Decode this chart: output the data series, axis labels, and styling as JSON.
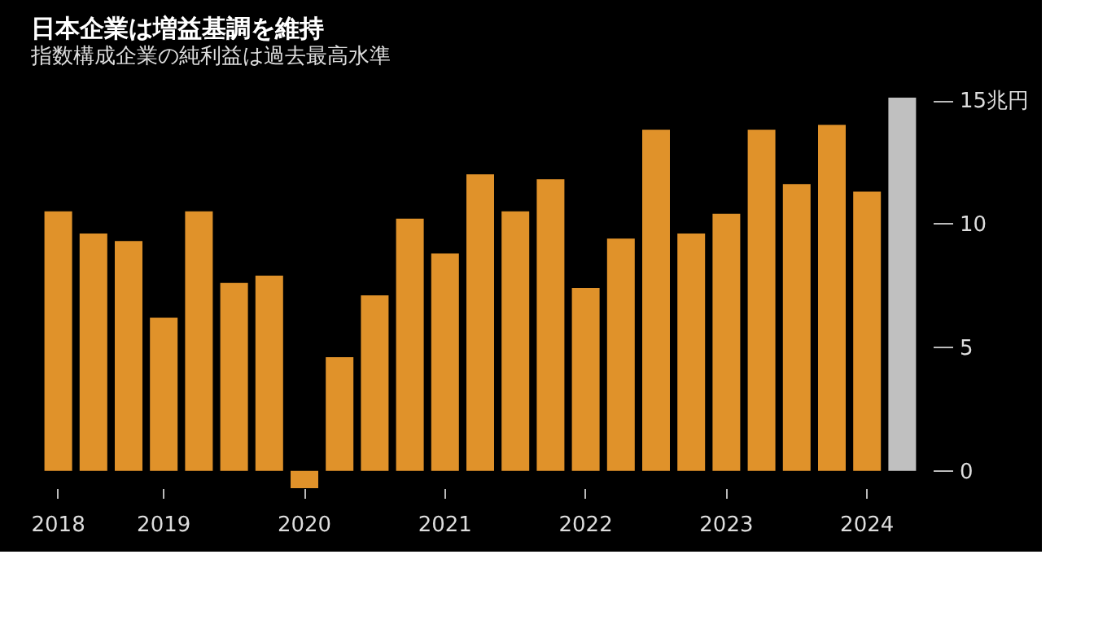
{
  "chart_data": {
    "type": "bar",
    "title": "日本企業は増益基調を維持",
    "subtitle": "指数構成企業の純利益は過去最高水準",
    "categories": [
      "2018",
      null,
      null,
      "2019",
      null,
      null,
      null,
      "2020",
      null,
      null,
      null,
      "2021",
      null,
      null,
      null,
      "2022",
      null,
      null,
      null,
      "2023",
      null,
      null,
      null,
      "2024",
      null
    ],
    "values": [
      10.5,
      9.6,
      9.3,
      6.2,
      10.5,
      7.6,
      7.9,
      -0.7,
      4.6,
      7.1,
      10.2,
      8.8,
      12.0,
      10.5,
      11.8,
      7.4,
      9.4,
      13.8,
      9.6,
      10.4,
      13.8,
      11.6,
      14.0,
      11.3,
      15.1
    ],
    "colors": [
      "#e0922a",
      "#e0922a",
      "#e0922a",
      "#e0922a",
      "#e0922a",
      "#e0922a",
      "#e0922a",
      "#e0922a",
      "#e0922a",
      "#e0922a",
      "#e0922a",
      "#e0922a",
      "#e0922a",
      "#e0922a",
      "#e0922a",
      "#e0922a",
      "#e0922a",
      "#e0922a",
      "#e0922a",
      "#e0922a",
      "#e0922a",
      "#e0922a",
      "#e0922a",
      "#e0922a",
      "#c0c0c0"
    ],
    "ylim": [
      -0.7,
      15.1
    ],
    "yticks": [
      0,
      5,
      10,
      {
        "value": 15,
        "label": "15兆円"
      }
    ],
    "grid": false
  }
}
